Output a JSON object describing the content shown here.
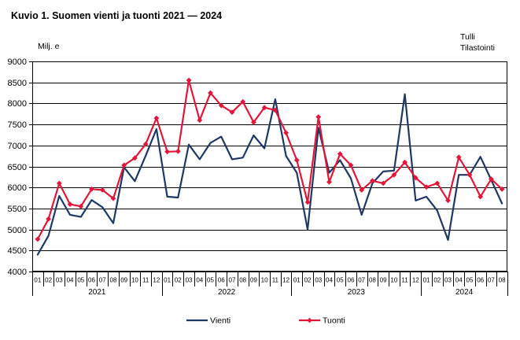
{
  "page": {
    "title": "Kuvio 1. Suomen vienti ja tuonti 2021 — 2024",
    "source": {
      "line1": "Tulli",
      "line2": "Tilastointi"
    }
  },
  "chart_data": {
    "type": "line",
    "title": "Kuvio 1. Suomen vienti ja tuonti 2021 — 2024",
    "xlabel": "",
    "ylabel": "Milj. e",
    "ylim": [
      4000,
      9000
    ],
    "y_ticks": [
      4000,
      4500,
      5000,
      5500,
      6000,
      6500,
      7000,
      7500,
      8000,
      8500,
      9000
    ],
    "grid": true,
    "legend_position": "bottom",
    "years": [
      {
        "label": "2021",
        "months": [
          "01",
          "02",
          "03",
          "04",
          "05",
          "06",
          "07",
          "08",
          "09",
          "10",
          "11",
          "12"
        ]
      },
      {
        "label": "2022",
        "months": [
          "01",
          "02",
          "03",
          "04",
          "05",
          "06",
          "07",
          "08",
          "09",
          "10",
          "11",
          "12"
        ]
      },
      {
        "label": "2023",
        "months": [
          "01",
          "02",
          "03",
          "04",
          "05",
          "06",
          "07",
          "08",
          "09",
          "10",
          "11",
          "12"
        ]
      },
      {
        "label": "2024",
        "months": [
          "01",
          "02",
          "03",
          "04",
          "05",
          "06",
          "07",
          "08"
        ]
      }
    ],
    "series": [
      {
        "name": "Vienti",
        "color": "#1F3864",
        "marker": "none",
        "values": [
          4400,
          4850,
          5800,
          5350,
          5300,
          5700,
          5530,
          5150,
          6480,
          6150,
          6750,
          7390,
          5780,
          5760,
          7020,
          6670,
          7060,
          7210,
          6670,
          6710,
          7240,
          6930,
          8100,
          6750,
          6350,
          5000,
          7420,
          6350,
          6650,
          6220,
          5350,
          6100,
          6380,
          6400,
          8220,
          5690,
          5780,
          5450,
          4750,
          6300,
          6300,
          6730,
          6180,
          5620
        ]
      },
      {
        "name": "Tuonti",
        "color": "#E0173A",
        "marker": "diamond",
        "values": [
          4770,
          5250,
          6100,
          5600,
          5550,
          5960,
          5940,
          5740,
          6530,
          6700,
          7030,
          7650,
          6850,
          6860,
          8550,
          7600,
          8250,
          7950,
          7790,
          8040,
          7550,
          7900,
          7840,
          7300,
          6650,
          5650,
          7680,
          6130,
          6800,
          6530,
          5940,
          6160,
          6100,
          6300,
          6600,
          6230,
          6010,
          6100,
          5690,
          6720,
          6300,
          5780,
          6200,
          5960
        ]
      }
    ]
  },
  "colors": {
    "vienti": "#1F3864",
    "tuonti": "#E0173A",
    "grid": "#000000",
    "background": "#FFFFFF"
  }
}
